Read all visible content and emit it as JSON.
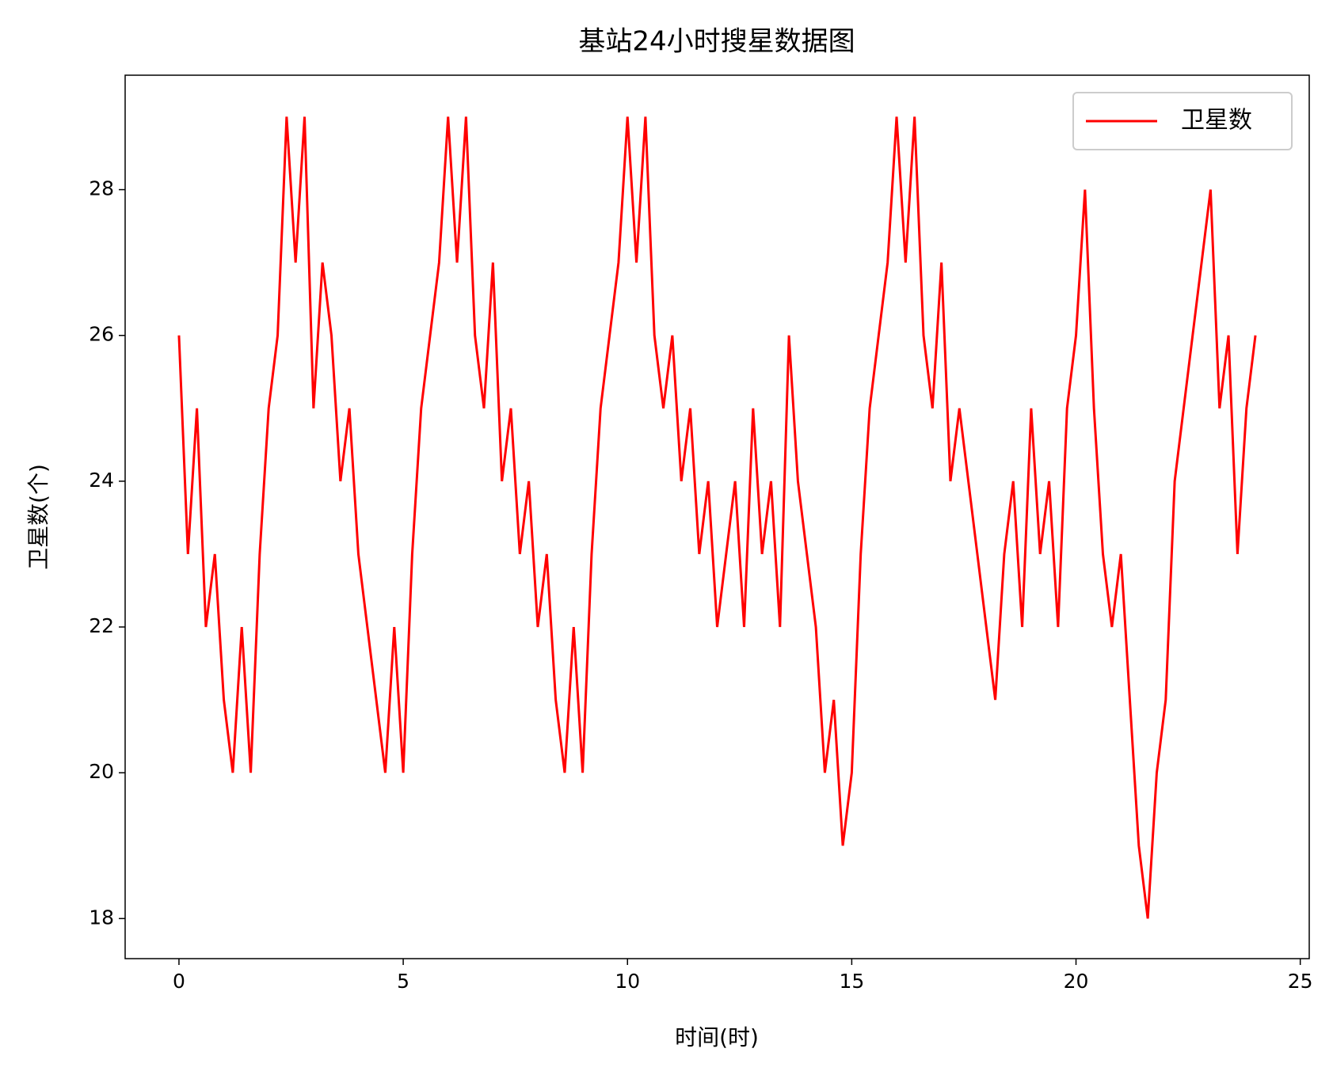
{
  "chart_data": {
    "type": "line",
    "title": "基站24小时搜星数据图",
    "xlabel": "时间(时)",
    "ylabel": "卫星数(个)",
    "x": [
      0,
      0.2,
      0.4,
      0.6,
      0.8,
      1,
      1.2,
      1.4,
      1.6,
      1.8,
      2,
      2.2,
      2.4,
      2.6,
      2.8,
      3,
      3.2,
      3.4,
      3.6,
      3.8,
      4,
      4.2,
      4.4,
      4.6,
      4.8,
      5,
      5.2,
      5.4,
      5.6,
      5.8,
      6,
      6.2,
      6.4,
      6.6,
      6.8,
      7,
      7.2,
      7.4,
      7.6,
      7.8,
      8,
      8.2,
      8.4,
      8.6,
      8.8,
      9,
      9.2,
      9.4,
      9.6,
      9.8,
      10,
      10.2,
      10.4,
      10.6,
      10.8,
      11,
      11.2,
      11.4,
      11.6,
      11.8,
      12,
      12.2,
      12.4,
      12.6,
      12.8,
      13,
      13.2,
      13.4,
      13.6,
      13.8,
      14,
      14.2,
      14.4,
      14.6,
      14.8,
      15,
      15.2,
      15.4,
      15.6,
      15.8,
      16,
      16.2,
      16.4,
      16.6,
      16.8,
      17,
      17.2,
      17.4,
      17.6,
      17.8,
      18,
      18.2,
      18.4,
      18.6,
      18.8,
      19,
      19.2,
      19.4,
      19.6,
      19.8,
      20,
      20.2,
      20.4,
      20.6,
      20.8,
      21,
      21.2,
      21.4,
      21.6,
      21.8,
      22,
      22.2,
      22.4,
      22.6,
      22.8,
      23,
      23.2,
      23.4,
      23.6,
      23.8,
      24
    ],
    "series": [
      {
        "name": "卫星数",
        "color": "#ff0000",
        "values": [
          26,
          23,
          25,
          22,
          23,
          21,
          20,
          22,
          20,
          23,
          25,
          26,
          29,
          27,
          29,
          25,
          27,
          26,
          24,
          25,
          23,
          22,
          21,
          20,
          22,
          20,
          23,
          25,
          26,
          27,
          29,
          27,
          29,
          26,
          25,
          27,
          24,
          25,
          23,
          24,
          22,
          23,
          21,
          20,
          22,
          20,
          23,
          25,
          26,
          27,
          29,
          27,
          29,
          26,
          25,
          26,
          24,
          25,
          23,
          24,
          22,
          23,
          24,
          22,
          25,
          23,
          24,
          22,
          26,
          24,
          23,
          22,
          20,
          21,
          19,
          20,
          23,
          25,
          26,
          27,
          29,
          27,
          29,
          26,
          25,
          27,
          24,
          25,
          24,
          23,
          22,
          21,
          23,
          24,
          22,
          25,
          23,
          24,
          22,
          25,
          26,
          28,
          25,
          23,
          22,
          23,
          21,
          19,
          18,
          20,
          21,
          24,
          25,
          26,
          27,
          28,
          25,
          26,
          23,
          25,
          26
        ]
      }
    ],
    "xlim": [
      -1.2,
      25.2
    ],
    "ylim": [
      17.45,
      29.57
    ],
    "xticks": [
      0,
      5,
      10,
      15,
      20,
      25
    ],
    "yticks": [
      18,
      20,
      22,
      24,
      26,
      28
    ],
    "legend": "upper right"
  }
}
